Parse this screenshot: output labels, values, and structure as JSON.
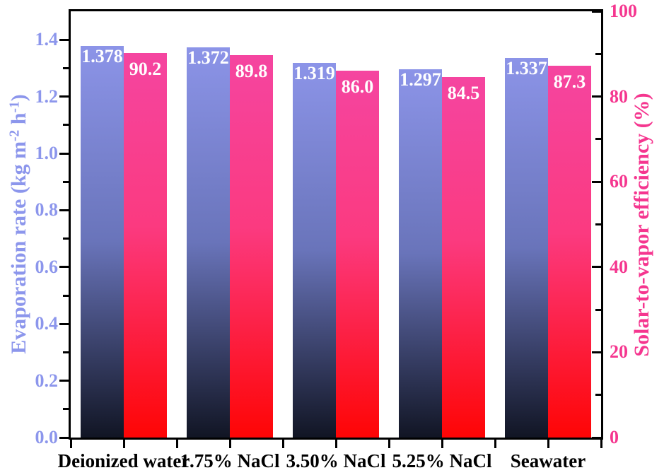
{
  "chart_data": {
    "type": "bar",
    "title": "",
    "categories": [
      "Deionized water",
      "1.75% NaCl",
      "3.50% NaCl",
      "5.25% NaCl",
      "Seawater"
    ],
    "series": [
      {
        "name": "Evaporation rate",
        "axis": "left",
        "values": [
          1.378,
          1.372,
          1.319,
          1.297,
          1.337
        ],
        "value_labels": [
          "1.378",
          "1.372",
          "1.319",
          "1.297",
          "1.337"
        ],
        "bar_gradient": [
          "#8C94E8",
          "#6974BA",
          "#111524"
        ]
      },
      {
        "name": "Solar-to-vapor efficiency",
        "axis": "right",
        "values": [
          90.2,
          89.8,
          86.0,
          84.5,
          87.3
        ],
        "value_labels": [
          "90.2",
          "89.8",
          "86.0",
          "84.5",
          "87.3"
        ],
        "bar_gradient": [
          "#F545A0",
          "#FB3A80",
          "#FE0505"
        ]
      }
    ],
    "left_axis": {
      "title_parts": [
        {
          "text": "Evaporation rate (kg m"
        },
        {
          "sup": "-2"
        },
        {
          "text": " h"
        },
        {
          "sup": "-1"
        },
        {
          "text": ")"
        }
      ],
      "range": [
        0,
        1.5
      ],
      "tick_values": [
        0.0,
        0.2,
        0.4,
        0.6,
        0.8,
        1.0,
        1.2,
        1.4
      ],
      "tick_labels": [
        "0.0",
        "0.2",
        "0.4",
        "0.6",
        "0.8",
        "1.0",
        "1.2",
        "1.4"
      ],
      "minor_tick_values": [
        0.1,
        0.3,
        0.5,
        0.7,
        0.9,
        1.1,
        1.3
      ],
      "color": "#8C96EC",
      "grid": false
    },
    "right_axis": {
      "title_parts": [
        {
          "text": "Solar-to-vapor efficiency (%)"
        }
      ],
      "range": [
        0,
        100
      ],
      "tick_values": [
        0,
        20,
        40,
        60,
        80,
        100
      ],
      "tick_labels": [
        "0",
        "20",
        "40",
        "60",
        "80",
        "100"
      ],
      "minor_tick_values": [
        10,
        30,
        50,
        70,
        90
      ],
      "color": "#F5368F",
      "grid": false
    },
    "x_axis": {
      "label_color": "#000000"
    },
    "frame_color": "#000000",
    "value_label_color": "#FFFFFF",
    "background": "#FFFFFF",
    "legend_position": "none"
  }
}
